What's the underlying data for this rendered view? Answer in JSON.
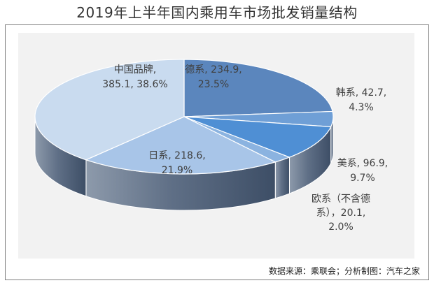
{
  "title": "2019年上半年国内乘用车市场批发销量结构",
  "source": "数据来源：乘联会；分析制图：汽车之家",
  "chart_data": {
    "type": "pie",
    "title": "2019年上半年国内乘用车市场批发销量结构",
    "grid": false,
    "legend": "none",
    "slices": [
      {
        "name": "德系",
        "value": 234.9,
        "percent": "23.5%",
        "label_lines": [
          "德系, 234.9,",
          "23.5%"
        ],
        "color": "#5b86bd"
      },
      {
        "name": "韩系",
        "value": 42.7,
        "percent": "4.3%",
        "label_lines": [
          "韩系, 42.7,",
          "4.3%"
        ],
        "color": "#6f9fd6"
      },
      {
        "name": "美系",
        "value": 96.9,
        "percent": "9.7%",
        "label_lines": [
          "美系, 96.9,",
          "9.7%"
        ],
        "color": "#4f8fd4"
      },
      {
        "name": "欧系（不含德系）",
        "value": 20.1,
        "percent": "2.0%",
        "label_lines": [
          "欧系（不含德",
          "系），20.1,",
          "2.0%"
        ],
        "color": "#8bb3e0"
      },
      {
        "name": "日系",
        "value": 218.6,
        "percent": "21.9%",
        "label_lines": [
          "日系, 218.6,",
          "21.9%"
        ],
        "color": "#a8c5e8"
      },
      {
        "name": "中国品牌",
        "value": 385.1,
        "percent": "38.6%",
        "label_lines": [
          "中国品牌,",
          "385.1, 38.6%"
        ],
        "color": "#c9dbef"
      }
    ]
  }
}
